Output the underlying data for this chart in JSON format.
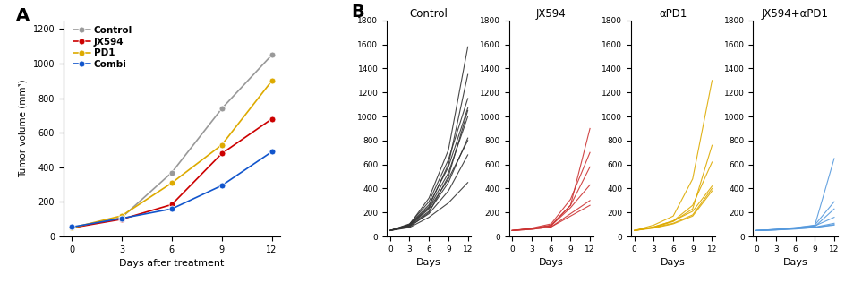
{
  "panel_A": {
    "xlabel": "Days after treatment",
    "ylabel": "Tumor volume (mm³)",
    "days": [
      0,
      3,
      6,
      9,
      12
    ],
    "groups": {
      "Control": {
        "color": "#999999",
        "values": [
          50,
          110,
          370,
          740,
          1050
        ]
      },
      "JX594": {
        "color": "#cc0000",
        "values": [
          50,
          100,
          185,
          480,
          680
        ]
      },
      "PD1": {
        "color": "#ddaa00",
        "values": [
          50,
          120,
          310,
          530,
          900
        ]
      },
      "Combi": {
        "color": "#1155cc",
        "values": [
          55,
          105,
          160,
          295,
          490
        ]
      }
    },
    "legend_labels": [
      "Control",
      "JX594",
      "PD1",
      "Combi"
    ],
    "ylim": [
      0,
      1250
    ],
    "yticks": [
      0,
      200,
      400,
      600,
      800,
      1000,
      1200
    ],
    "xticks": [
      0,
      3,
      6,
      9,
      12
    ]
  },
  "panel_B": {
    "subpanels": [
      {
        "label": "Control",
        "color": "#333333",
        "days": [
          0,
          3,
          6,
          9,
          12
        ],
        "individuals": [
          [
            50,
            75,
            160,
            280,
            450
          ],
          [
            50,
            85,
            190,
            380,
            680
          ],
          [
            50,
            90,
            210,
            450,
            820
          ],
          [
            50,
            95,
            240,
            530,
            1000
          ],
          [
            50,
            100,
            265,
            580,
            1070
          ],
          [
            50,
            105,
            290,
            640,
            1150
          ],
          [
            50,
            95,
            250,
            600,
            1350
          ],
          [
            50,
            100,
            320,
            720,
            1580
          ],
          [
            50,
            80,
            200,
            500,
            1050
          ],
          [
            50,
            90,
            230,
            480,
            800
          ]
        ]
      },
      {
        "label": "JX594",
        "color": "#cc3333",
        "days": [
          0,
          3,
          6,
          9,
          12
        ],
        "individuals": [
          [
            50,
            60,
            80,
            190,
            300
          ],
          [
            50,
            65,
            95,
            260,
            580
          ],
          [
            50,
            65,
            90,
            240,
            430
          ],
          [
            50,
            70,
            105,
            310,
            700
          ],
          [
            50,
            60,
            80,
            170,
            260
          ],
          [
            50,
            65,
            90,
            260,
            900
          ]
        ]
      },
      {
        "label": "αPD1",
        "color": "#ddaa00",
        "days": [
          0,
          3,
          6,
          9,
          12
        ],
        "individuals": [
          [
            50,
            75,
            110,
            180,
            400
          ],
          [
            50,
            80,
            130,
            260,
            620
          ],
          [
            50,
            75,
            125,
            230,
            760
          ],
          [
            50,
            95,
            170,
            480,
            1300
          ],
          [
            50,
            80,
            130,
            210,
            420
          ],
          [
            50,
            70,
            105,
            170,
            380
          ]
        ]
      },
      {
        "label": "JX594+αPD1",
        "color": "#5599dd",
        "days": [
          0,
          3,
          6,
          9,
          12
        ],
        "individuals": [
          [
            50,
            55,
            65,
            75,
            100
          ],
          [
            50,
            58,
            70,
            88,
            160
          ],
          [
            50,
            56,
            68,
            82,
            230
          ],
          [
            50,
            60,
            72,
            95,
            290
          ],
          [
            50,
            55,
            62,
            75,
            95
          ],
          [
            50,
            60,
            75,
            90,
            650
          ],
          [
            50,
            57,
            68,
            78,
            110
          ]
        ]
      }
    ],
    "ylim": [
      0,
      1800
    ],
    "yticks": [
      0,
      200,
      400,
      600,
      800,
      1000,
      1200,
      1400,
      1600,
      1800
    ],
    "xticks": [
      0,
      3,
      6,
      9,
      12
    ],
    "xlabel": "Days"
  }
}
